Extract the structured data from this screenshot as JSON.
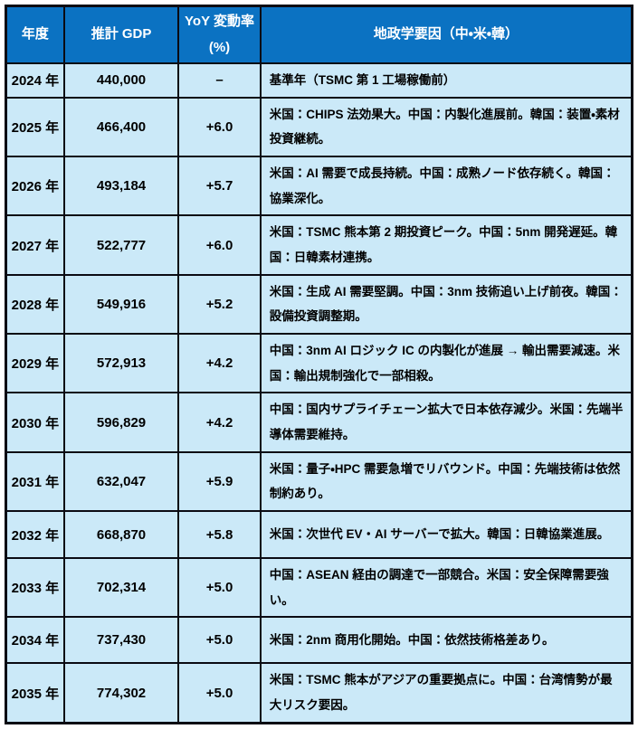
{
  "colors": {
    "header_bg": "#0b72c2",
    "header_text": "#ffffff",
    "row_bg": "#cbe9f8",
    "border": "#0b0b13",
    "body_text": "#000000"
  },
  "table": {
    "headers": {
      "year": "年度",
      "gdp": "推計 GDP",
      "yoy_line1": "YoY 変動率",
      "yoy_line2": "(%)",
      "factors": "地政学要因（中・米・韓）"
    },
    "rows": [
      {
        "year": "2024 年",
        "gdp": "440,000",
        "yoy": "–",
        "factors": "基準年（TSMC 第 1 工場稼働前）"
      },
      {
        "year": "2025 年",
        "gdp": "466,400",
        "yoy": "+6.0",
        "factors": "米国：CHIPS 法効果大。中国：内製化進展前。韓国：装置・素材投資継続。"
      },
      {
        "year": "2026 年",
        "gdp": "493,184",
        "yoy": "+5.7",
        "factors": "米国：AI 需要で成長持続。中国：成熟ノード依存続く。韓国：協業深化。"
      },
      {
        "year": "2027 年",
        "gdp": "522,777",
        "yoy": "+6.0",
        "factors": "米国：TSMC 熊本第 2 期投資ピーク。中国：5nm 開発遅延。韓国：日韓素材連携。"
      },
      {
        "year": "2028 年",
        "gdp": "549,916",
        "yoy": "+5.2",
        "factors": "米国：生成 AI 需要堅調。中国：3nm 技術追い上げ前夜。韓国：設備投資調整期。"
      },
      {
        "year": "2029 年",
        "gdp": "572,913",
        "yoy": "+4.2",
        "factors": "中国：3nm AI ロジック IC の内製化が進展 → 輸出需要減速。米国：輸出規制強化で一部相殺。"
      },
      {
        "year": "2030 年",
        "gdp": "596,829",
        "yoy": "+4.2",
        "factors": "中国：国内サプライチェーン拡大で日本依存減少。米国：先端半導体需要維持。"
      },
      {
        "year": "2031 年",
        "gdp": "632,047",
        "yoy": "+5.9",
        "factors": "米国：量子・HPC 需要急増でリバウンド。中国：先端技術は依然制約あり。"
      },
      {
        "year": "2032 年",
        "gdp": "668,870",
        "yoy": "+5.8",
        "factors": "米国：次世代 EV・AI サーバーで拡大。韓国：日韓協業進展。"
      },
      {
        "year": "2033 年",
        "gdp": "702,314",
        "yoy": "+5.0",
        "factors": "中国：ASEAN 経由の調達で一部競合。米国：安全保障需要強い。"
      },
      {
        "year": "2034 年",
        "gdp": "737,430",
        "yoy": "+5.0",
        "factors": "米国：2nm 商用化開始。中国：依然技術格差あり。"
      },
      {
        "year": "2035 年",
        "gdp": "774,302",
        "yoy": "+5.0",
        "factors": "米国：TSMC 熊本がアジアの重要拠点に。中国：台湾情勢が最大リスク要因。"
      }
    ]
  }
}
